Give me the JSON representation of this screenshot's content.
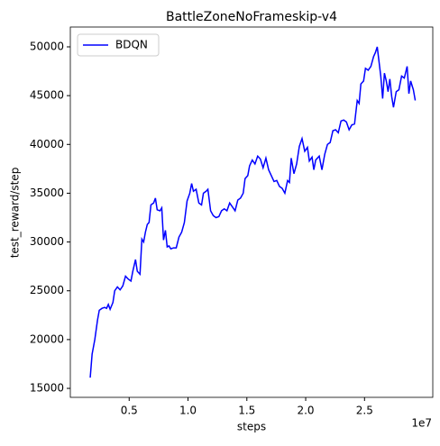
{
  "chart_data": {
    "type": "line",
    "title": "BattleZoneNoFrameskip-v4",
    "xlabel": "steps",
    "ylabel": "test_reward/step",
    "x_offset_label": "1e7",
    "x": [
      1690000,
      1850000,
      2080000,
      2310000,
      2460000,
      2690000,
      2920000,
      3080000,
      3230000,
      3380000,
      3620000,
      3770000,
      4000000,
      4230000,
      4460000,
      4690000,
      4920000,
      5150000,
      5310000,
      5540000,
      5690000,
      5920000,
      6080000,
      6230000,
      6380000,
      6540000,
      6690000,
      6850000,
      7080000,
      7230000,
      7380000,
      7620000,
      7770000,
      7920000,
      8080000,
      8230000,
      8380000,
      8540000,
      8770000,
      9000000,
      9230000,
      9460000,
      9690000,
      9920000,
      10150000,
      10310000,
      10460000,
      10690000,
      10920000,
      11150000,
      11310000,
      11540000,
      11690000,
      11920000,
      12150000,
      12380000,
      12620000,
      12850000,
      13080000,
      13310000,
      13540000,
      13770000,
      14000000,
      14230000,
      14460000,
      14690000,
      14850000,
      15080000,
      15230000,
      15460000,
      15690000,
      15920000,
      16150000,
      16380000,
      16620000,
      16850000,
      17080000,
      17310000,
      17540000,
      17770000,
      18000000,
      18230000,
      18460000,
      18620000,
      18770000,
      19000000,
      19230000,
      19460000,
      19690000,
      19920000,
      20150000,
      20310000,
      20540000,
      20690000,
      20850000,
      21150000,
      21380000,
      21620000,
      21850000,
      22080000,
      22310000,
      22540000,
      22770000,
      23000000,
      23230000,
      23460000,
      23690000,
      23920000,
      24150000,
      24380000,
      24540000,
      24690000,
      24920000,
      25080000,
      25310000,
      25540000,
      25770000,
      25920000,
      26080000,
      26230000,
      26380000,
      26540000,
      26690000,
      26850000,
      27000000,
      27150000,
      27310000,
      27460000,
      27690000,
      27920000,
      28150000,
      28380000,
      28620000,
      28770000,
      28920000,
      29150000,
      29310000
    ],
    "series": [
      {
        "name": "BDQN",
        "color": "#0000ff",
        "values": [
          16100,
          18500,
          20000,
          22000,
          23000,
          23200,
          23300,
          23200,
          23600,
          23100,
          23800,
          25000,
          25400,
          25100,
          25500,
          26500,
          26200,
          26000,
          27000,
          28200,
          27000,
          26700,
          30300,
          30000,
          31000,
          31800,
          32000,
          33800,
          34000,
          34500,
          33300,
          33200,
          33500,
          30200,
          31200,
          29500,
          29600,
          29300,
          29400,
          29400,
          30500,
          31000,
          32000,
          34200,
          35000,
          36000,
          35200,
          35400,
          34000,
          33800,
          35000,
          35200,
          35400,
          33200,
          32700,
          32500,
          32600,
          33200,
          33400,
          33200,
          34000,
          33600,
          33200,
          34300,
          34500,
          35000,
          36500,
          36800,
          37800,
          38400,
          38000,
          38800,
          38500,
          37600,
          38600,
          37400,
          36800,
          36200,
          36300,
          35700,
          35500,
          35000,
          36300,
          36100,
          38600,
          37000,
          38000,
          39800,
          40600,
          39300,
          39700,
          38300,
          38700,
          37400,
          38400,
          38800,
          37400,
          39000,
          40000,
          40200,
          41400,
          41500,
          41200,
          42400,
          42500,
          42300,
          41500,
          42000,
          42100,
          44500,
          44200,
          46200,
          46500,
          47800,
          47600,
          48000,
          49000,
          49400,
          50000,
          48500,
          47000,
          44700,
          47300,
          46500,
          45400,
          46700,
          44900,
          43800,
          45400,
          45600,
          47000,
          46800,
          48000,
          45200,
          46500,
          45600,
          44500
        ]
      }
    ],
    "xlim": [
      0,
      30800000
    ],
    "ylim": [
      14080,
      52030
    ],
    "xticks": [
      {
        "value": 5000000,
        "label": "0.5"
      },
      {
        "value": 10000000,
        "label": "1.0"
      },
      {
        "value": 15000000,
        "label": "1.5"
      },
      {
        "value": 20000000,
        "label": "2.0"
      },
      {
        "value": 25000000,
        "label": "2.5"
      }
    ],
    "yticks": [
      15000,
      20000,
      25000,
      30000,
      35000,
      40000,
      45000,
      50000
    ],
    "legend": "upper left",
    "grid": false
  }
}
